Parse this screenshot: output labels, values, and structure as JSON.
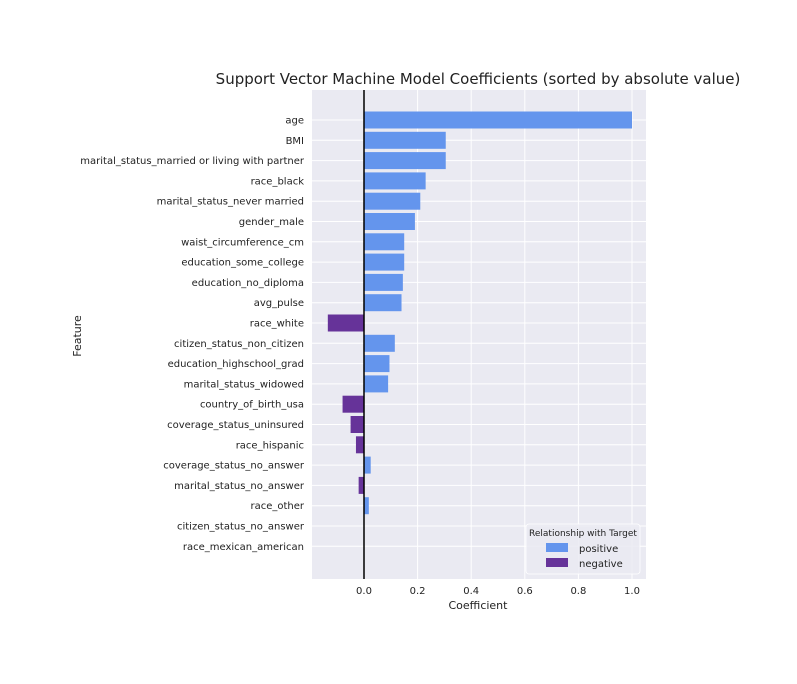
{
  "chart_data": {
    "type": "bar",
    "orientation": "horizontal",
    "title": "Support Vector Machine Model Coefficients (sorted by absolute value)",
    "xlabel": "Coefficient",
    "ylabel": "Feature",
    "xlim": [
      -0.19,
      1.04
    ],
    "xticks": [
      "0.0",
      "0.2",
      "0.4",
      "0.6",
      "0.8",
      "1.0"
    ],
    "grid": true,
    "legend": {
      "title": "Relationship with Target",
      "position": "lower-right",
      "entries": [
        {
          "label": "positive",
          "color": "#6495ED"
        },
        {
          "label": "negative",
          "color": "#663399"
        }
      ]
    },
    "categories": [
      "age",
      "BMI",
      "marital_status_married or living with partner",
      "race_black",
      "marital_status_never married",
      "gender_male",
      "waist_circumference_cm",
      "education_some_college",
      "education_no_diploma",
      "avg_pulse",
      "race_white",
      "citizen_status_non_citizen",
      "education_highschool_grad",
      "marital_status_widowed",
      "country_of_birth_usa",
      "coverage_status_uninsured",
      "race_hispanic",
      "coverage_status_no_answer",
      "marital_status_no_answer",
      "race_other",
      "citizen_status_no_answer",
      "race_mexican_american"
    ],
    "values": [
      1.0,
      0.305,
      0.305,
      0.23,
      0.21,
      0.19,
      0.15,
      0.15,
      0.145,
      0.14,
      -0.135,
      0.115,
      0.095,
      0.09,
      -0.08,
      -0.05,
      -0.03,
      0.025,
      -0.02,
      0.018,
      0.0,
      0.0
    ],
    "relationship": [
      "positive",
      "positive",
      "positive",
      "positive",
      "positive",
      "positive",
      "positive",
      "positive",
      "positive",
      "positive",
      "negative",
      "positive",
      "positive",
      "positive",
      "negative",
      "negative",
      "negative",
      "positive",
      "negative",
      "positive",
      "positive",
      "positive"
    ],
    "colors": {
      "positive": "#6495ED",
      "negative": "#663399",
      "plot_background": "#EAEAF2",
      "zero_line": "#000000"
    }
  }
}
